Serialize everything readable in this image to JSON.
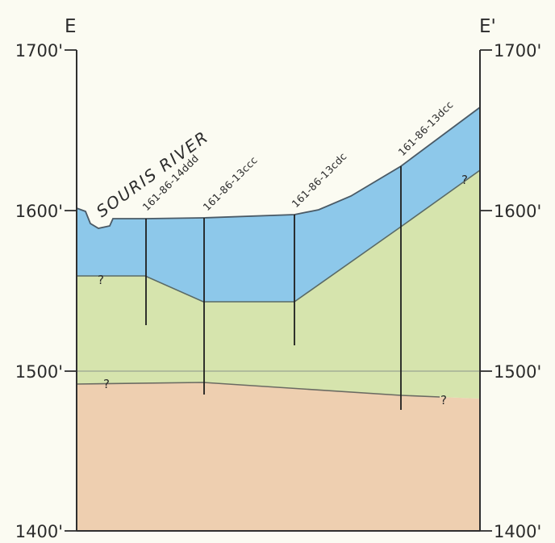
{
  "section": {
    "start_label": "E",
    "end_label": "E'",
    "elevation_labels": [
      "1700'",
      "1600'",
      "1500'",
      "1400'"
    ],
    "river_label": "SOURIS RIVER",
    "query_mark": "?",
    "wells": [
      {
        "id": "161-86-14ddd"
      },
      {
        "id": "161-86-13ccc"
      },
      {
        "id": "161-86-13cdc"
      },
      {
        "id": "161-86-13dcc"
      }
    ]
  },
  "colors": {
    "background": "#fbfbf2",
    "upper_unit": "#8dc8ea",
    "middle_unit": "#d6e4ad",
    "lower_unit": "#eecfb0",
    "line": "#2f2f2f"
  }
}
